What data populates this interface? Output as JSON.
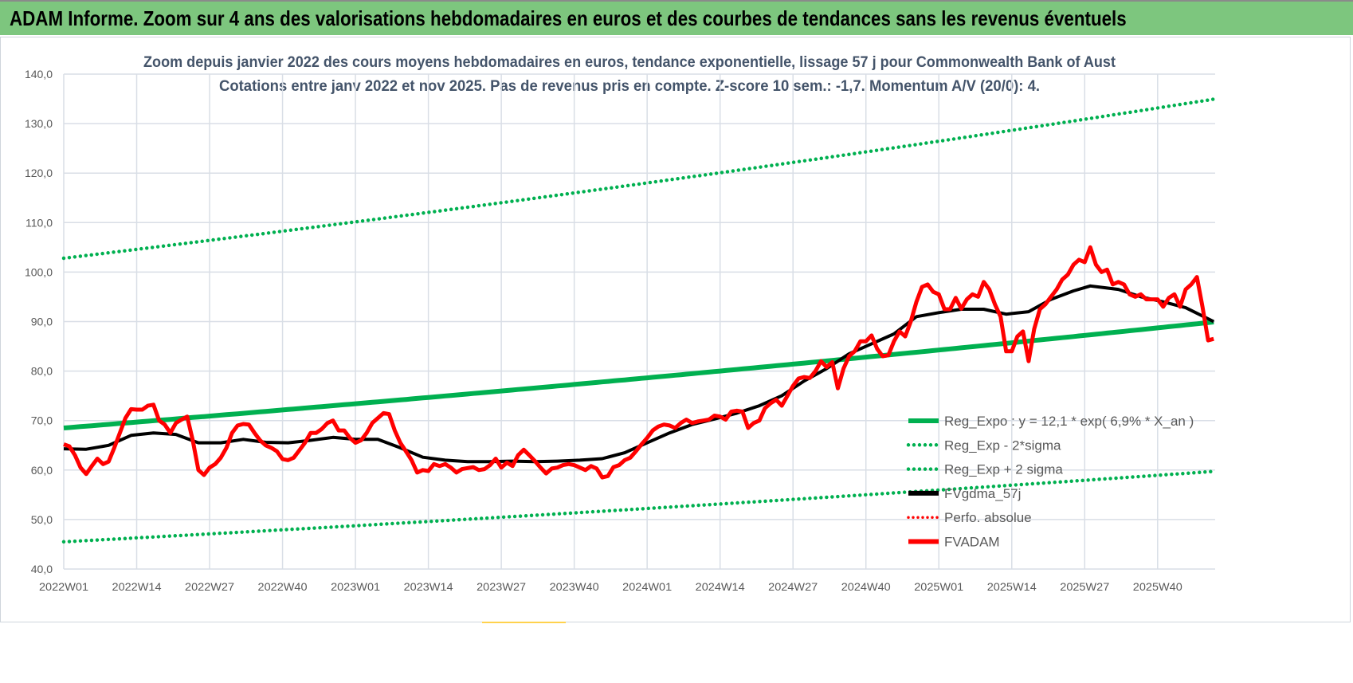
{
  "header": {
    "title": "ADAM Informe. Zoom sur 4 ans des valorisations hebdomadaires en euros et des courbes de tendances sans les revenus éventuels"
  },
  "chart_data": {
    "type": "line",
    "title": "Zoom depuis janvier 2022 des cours moyens hebdomadaires en euros, tendance exponentielle, lissage 57 j pour Commonwealth Bank of Aust",
    "subtitle": "Cotations entre janv 2022 et nov 2025. Pas de revenus pris en compte. Z-score 10 sem.: -1,7. Momentum A/V (20/0): 4.",
    "xlabel": "",
    "ylabel": "",
    "ylim": [
      40,
      140
    ],
    "y_ticks": [
      "40,0",
      "50,0",
      "60,0",
      "70,0",
      "80,0",
      "90,0",
      "100,0",
      "110,0",
      "120,0",
      "130,0",
      "140,0"
    ],
    "x_ticks": [
      "2022W01",
      "2022W14",
      "2022W27",
      "2022W40",
      "2023W01",
      "2023W14",
      "2023W27",
      "2023W40",
      "2024W01",
      "2024W14",
      "2024W27",
      "2024W40",
      "2025W01",
      "2025W14",
      "2025W27",
      "2025W40"
    ],
    "x_tick_step_weeks": 13,
    "grid": true,
    "legend_position": "bottom-right",
    "colors": {
      "reg": "#00b050",
      "band": "#00b050",
      "fv": "#000000",
      "perfo": "#ff0000",
      "adam": "#ff0000",
      "title": "#44546a",
      "header": "#7dc67e"
    },
    "regression": {
      "start": 68.5,
      "upper_start": 102.8,
      "lower_start": 45.5,
      "annual_rate": 0.069
    },
    "series": [
      {
        "name": "Reg_Expo : y = 12,1 * exp( 6,9% *  X_an )",
        "style": "solid-green"
      },
      {
        "name": "Reg_Exp - 2*sigma",
        "style": "dotted-green"
      },
      {
        "name": "Reg_Exp + 2 sigma",
        "style": "dotted-green"
      },
      {
        "name": "FVgdma_57j",
        "style": "solid-black",
        "x": [
          0,
          4,
          8,
          12,
          16,
          20,
          24,
          28,
          32,
          36,
          40,
          44,
          48,
          52,
          56,
          60,
          64,
          68,
          72,
          76,
          80,
          84,
          88,
          92,
          96,
          100,
          104,
          108,
          112,
          116,
          120,
          124,
          128,
          132,
          136,
          140,
          144,
          148,
          152,
          156,
          160,
          164,
          168,
          172,
          176,
          180,
          183,
          188,
          192,
          196,
          200,
          205
        ],
        "values": [
          64.3,
          64.2,
          65,
          67,
          67.5,
          67.2,
          65.5,
          65.5,
          66.2,
          65.6,
          65.5,
          66,
          66.6,
          66.2,
          66.2,
          64.5,
          62.6,
          62,
          61.7,
          61.7,
          61.8,
          61.7,
          61.8,
          62,
          62.3,
          63.5,
          65.5,
          67.5,
          69.2,
          70.3,
          71.5,
          73,
          75,
          78,
          80.5,
          83.5,
          85.5,
          87.5,
          91,
          91.8,
          92.5,
          92.5,
          91.5,
          92,
          94.5,
          96.2,
          97.2,
          96.5,
          95,
          94,
          92.8,
          90
        ]
      },
      {
        "name": "Perfo. absolue",
        "style": "dotted-red"
      },
      {
        "name": "FVADAM",
        "style": "solid-red",
        "values": [
          65.2,
          64.8,
          63,
          60.5,
          59.2,
          60.8,
          62.3,
          61.2,
          61.7,
          64.5,
          67.5,
          70.5,
          72.3,
          72.2,
          72.2,
          73,
          73.2,
          70,
          69.2,
          67.5,
          69.5,
          70.2,
          70.8,
          66,
          60,
          59,
          60.5,
          61.2,
          62.5,
          64.5,
          67.5,
          69,
          69.3,
          69.2,
          67.5,
          66,
          65,
          64.5,
          63.8,
          62.2,
          62,
          62.5,
          64,
          65.5,
          67.5,
          67.5,
          68.3,
          69.5,
          70,
          68,
          68,
          66.5,
          65.5,
          66,
          67.5,
          69.5,
          70.5,
          71.5,
          71.3,
          68,
          65.5,
          63.8,
          62,
          59.5,
          60,
          59.8,
          61.2,
          60.8,
          61.2,
          60.5,
          59.5,
          60.2,
          60.4,
          60.6,
          60,
          60.2,
          61,
          62.3,
          60.5,
          61.5,
          60.8,
          63,
          64.1,
          63,
          61.8,
          60.5,
          59.3,
          60.3,
          60.5,
          61,
          61.2,
          61,
          60.5,
          60,
          60.8,
          60.3,
          58.5,
          58.8,
          60.6,
          61,
          62,
          62.5,
          63.8,
          65.2,
          66.5,
          68,
          68.8,
          69.2,
          69,
          68.5,
          69.5,
          70.2,
          69.5,
          69.8,
          70,
          70.2,
          71,
          70.8,
          70.2,
          71.8,
          72,
          71.8,
          68.5,
          69.5,
          70,
          72.5,
          73.5,
          74.2,
          73,
          75,
          77,
          78.5,
          78.8,
          78.6,
          80,
          82,
          80.8,
          81.8,
          76.5,
          80.5,
          83,
          84,
          86,
          86,
          87.2,
          84.5,
          83,
          83.2,
          86,
          88,
          87,
          90,
          94,
          97,
          97.5,
          96,
          95.5,
          92.5,
          92.5,
          94.8,
          92.6,
          94.5,
          95.5,
          95,
          98,
          96.5,
          93.5,
          91,
          84,
          84,
          87,
          88,
          82,
          88.5,
          92.5,
          93.5,
          95,
          96.5,
          98.5,
          99.5,
          101.5,
          102.5,
          102,
          105,
          101.5,
          100,
          100.5,
          97.5,
          98,
          97.5,
          95.5,
          95,
          95.5,
          94.5,
          94.5,
          94.5,
          93,
          94.8,
          95.5,
          93,
          96.5,
          97.5,
          99,
          93,
          86.2,
          86.5
        ]
      }
    ]
  }
}
